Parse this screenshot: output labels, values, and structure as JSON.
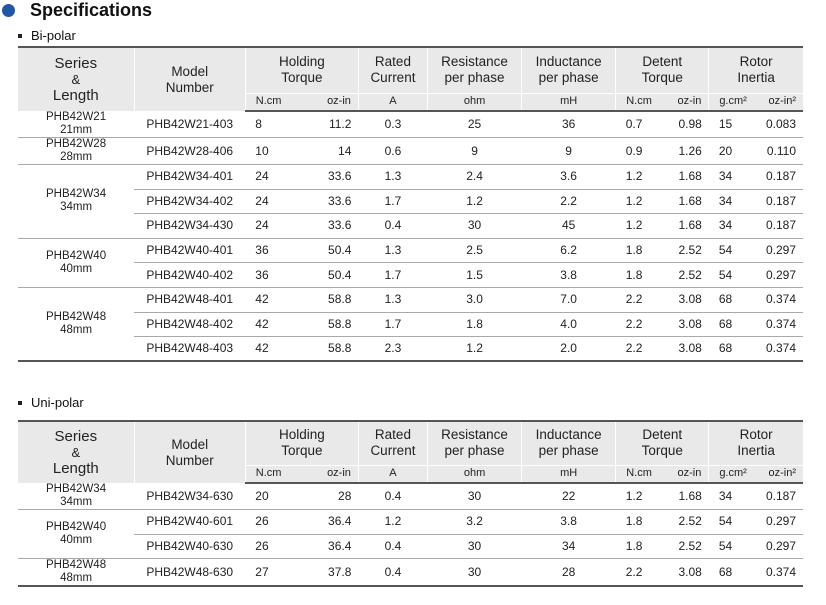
{
  "title": "Specifications",
  "headers": {
    "series": "Series",
    "amp": "&",
    "length": "Length",
    "model": [
      "Model",
      "Number"
    ],
    "holding": [
      "Holding",
      "Torque"
    ],
    "rated": [
      "Rated",
      "Current"
    ],
    "resistance": [
      "Resistance",
      "per phase"
    ],
    "inductance": [
      "Inductance",
      "per phase"
    ],
    "detent": [
      "Detent",
      "Torque"
    ],
    "rotor": [
      "Rotor",
      "Inertia"
    ],
    "units": [
      "N.cm",
      "oz-in",
      "A",
      "ohm",
      "mH",
      "N.cm",
      "oz-in",
      "g.cm²",
      "oz-in²"
    ]
  },
  "bipolar": {
    "label": "Bi-polar",
    "groups": [
      {
        "series": "PHB42W21",
        "length": "21mm",
        "rows": [
          [
            "PHB42W21-403",
            "8",
            "11.2",
            "0.3",
            "25",
            "36",
            "0.7",
            "0.98",
            "15",
            "0.083"
          ]
        ]
      },
      {
        "series": "PHB42W28",
        "length": "28mm",
        "rows": [
          [
            "PHB42W28-406",
            "10",
            "14",
            "0.6",
            "9",
            "9",
            "0.9",
            "1.26",
            "20",
            "0.110"
          ]
        ]
      },
      {
        "series": "PHB42W34",
        "length": "34mm",
        "rows": [
          [
            "PHB42W34-401",
            "24",
            "33.6",
            "1.3",
            "2.4",
            "3.6",
            "1.2",
            "1.68",
            "34",
            "0.187"
          ],
          [
            "PHB42W34-402",
            "24",
            "33.6",
            "1.7",
            "1.2",
            "2.2",
            "1.2",
            "1.68",
            "34",
            "0.187"
          ],
          [
            "PHB42W34-430",
            "24",
            "33.6",
            "0.4",
            "30",
            "45",
            "1.2",
            "1.68",
            "34",
            "0.187"
          ]
        ]
      },
      {
        "series": "PHB42W40",
        "length": "40mm",
        "rows": [
          [
            "PHB42W40-401",
            "36",
            "50.4",
            "1.3",
            "2.5",
            "6.2",
            "1.8",
            "2.52",
            "54",
            "0.297"
          ],
          [
            "PHB42W40-402",
            "36",
            "50.4",
            "1.7",
            "1.5",
            "3.8",
            "1.8",
            "2.52",
            "54",
            "0.297"
          ]
        ]
      },
      {
        "series": "PHB42W48",
        "length": "48mm",
        "rows": [
          [
            "PHB42W48-401",
            "42",
            "58.8",
            "1.3",
            "3.0",
            "7.0",
            "2.2",
            "3.08",
            "68",
            "0.374"
          ],
          [
            "PHB42W48-402",
            "42",
            "58.8",
            "1.7",
            "1.8",
            "4.0",
            "2.2",
            "3.08",
            "68",
            "0.374"
          ],
          [
            "PHB42W48-403",
            "42",
            "58.8",
            "2.3",
            "1.2",
            "2.0",
            "2.2",
            "3.08",
            "68",
            "0.374"
          ]
        ]
      }
    ]
  },
  "unipolar": {
    "label": "Uni-polar",
    "groups": [
      {
        "series": "PHB42W34",
        "length": "34mm",
        "rows": [
          [
            "PHB42W34-630",
            "20",
            "28",
            "0.4",
            "30",
            "22",
            "1.2",
            "1.68",
            "34",
            "0.187"
          ]
        ]
      },
      {
        "series": "PHB42W40",
        "length": "40mm",
        "rows": [
          [
            "PHB42W40-601",
            "26",
            "36.4",
            "1.2",
            "3.2",
            "3.8",
            "1.8",
            "2.52",
            "54",
            "0.297"
          ],
          [
            "PHB42W40-630",
            "26",
            "36.4",
            "0.4",
            "30",
            "34",
            "1.8",
            "2.52",
            "54",
            "0.297"
          ]
        ]
      },
      {
        "series": "PHB42W48",
        "length": "48mm",
        "rows": [
          [
            "PHB42W48-630",
            "27",
            "37.8",
            "0.4",
            "30",
            "28",
            "2.2",
            "3.08",
            "68",
            "0.374"
          ]
        ]
      }
    ]
  }
}
